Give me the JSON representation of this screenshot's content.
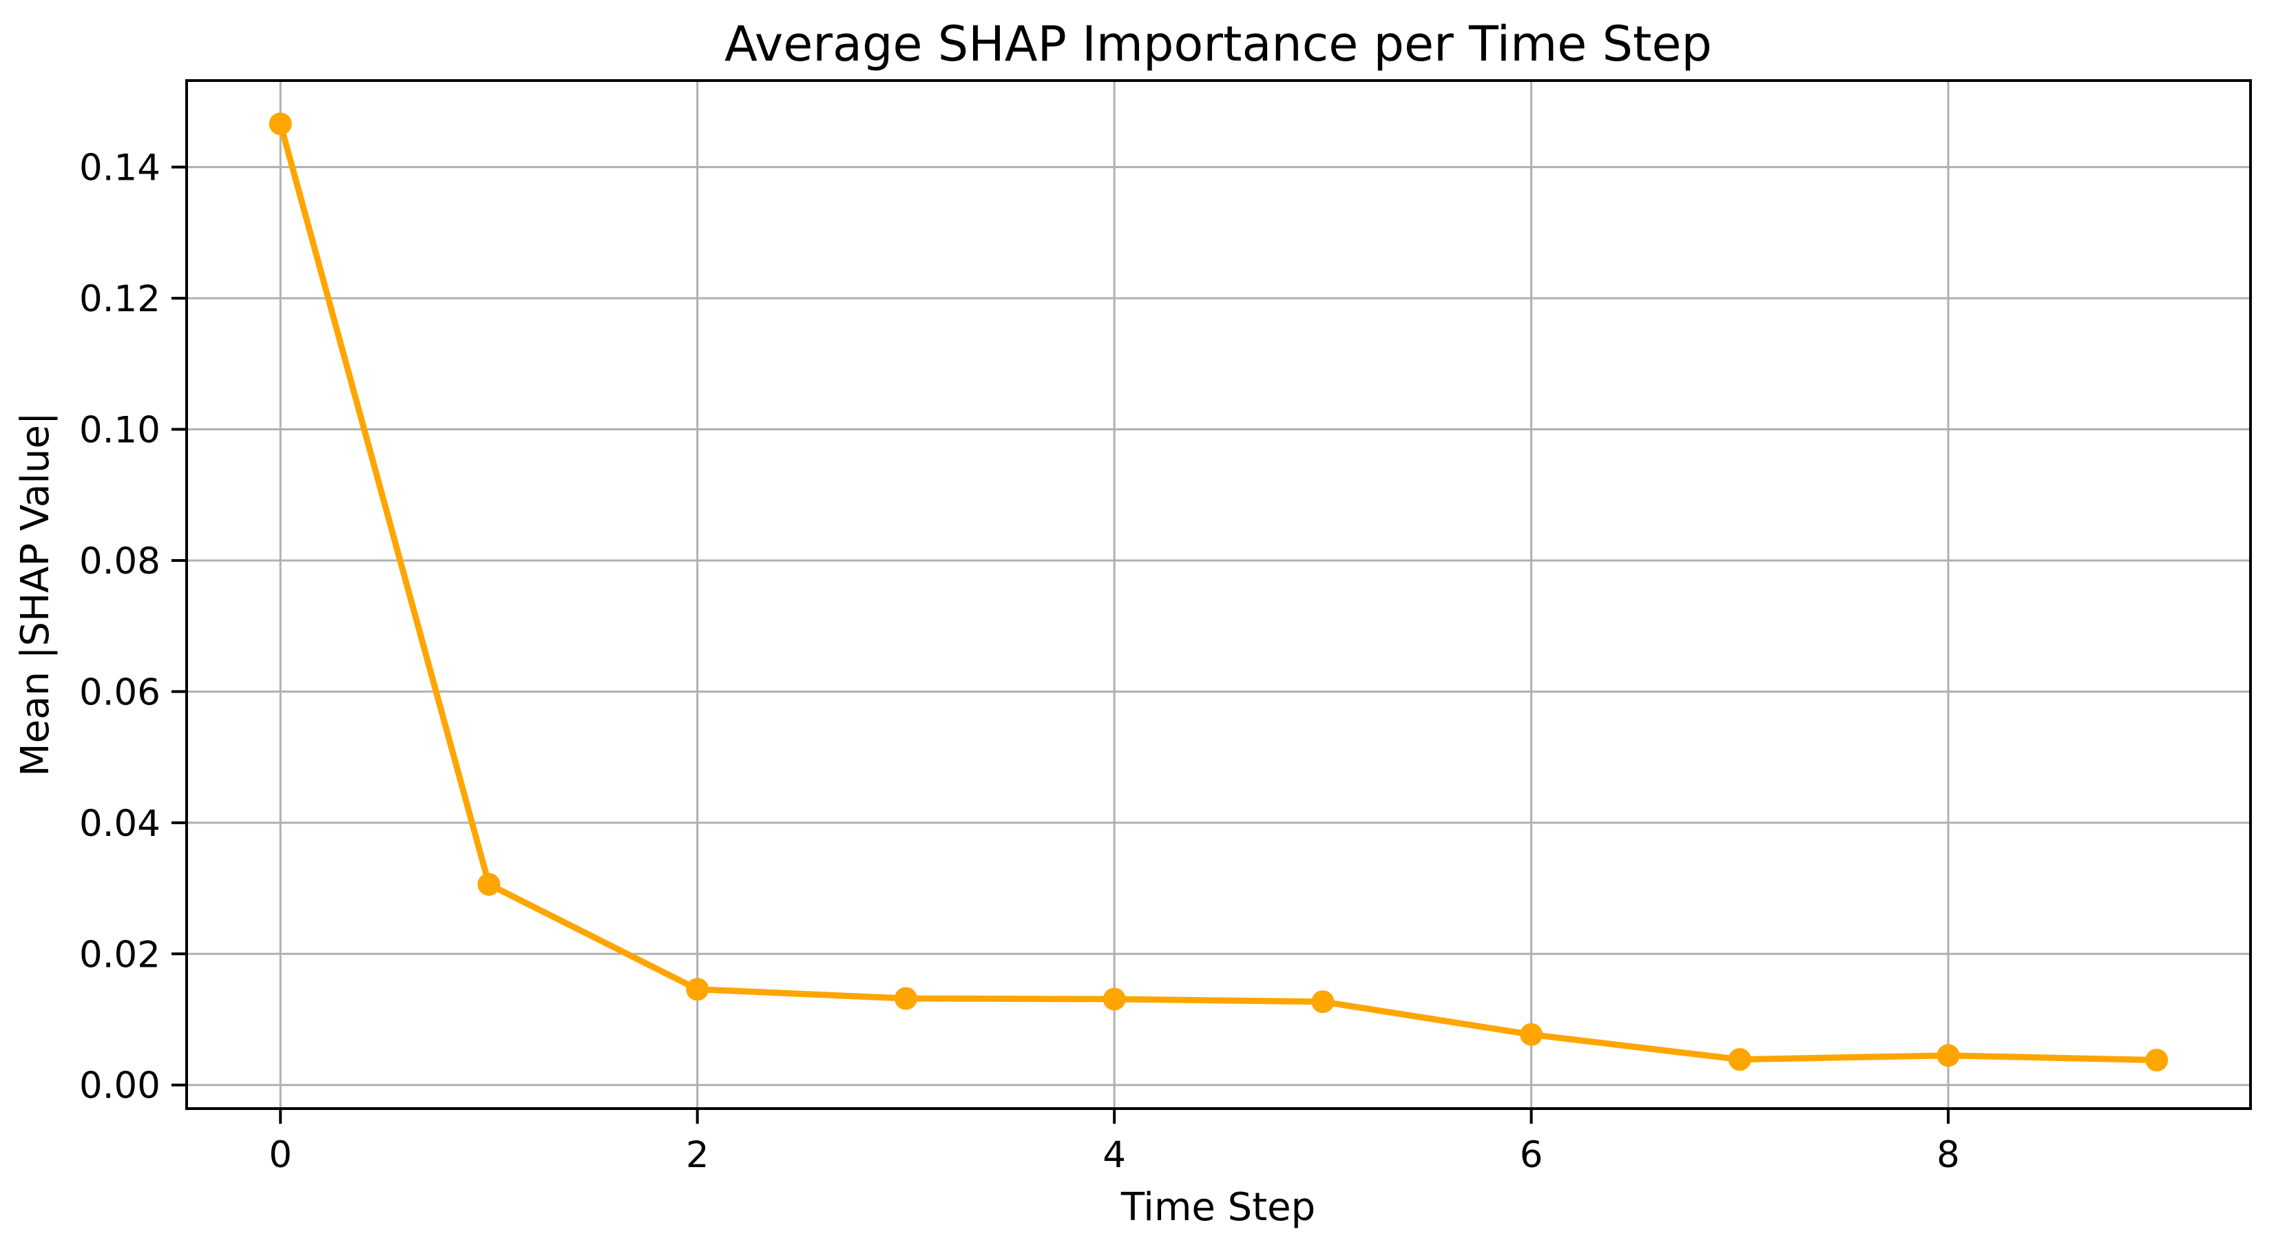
{
  "chart_data": {
    "type": "line",
    "title": "Average SHAP Importance per Time Step",
    "xlabel": "Time Step",
    "ylabel": "Mean |SHAP Value|",
    "x": [
      0,
      1,
      2,
      3,
      4,
      5,
      6,
      7,
      8,
      9
    ],
    "values": [
      0.1466,
      0.0306,
      0.0146,
      0.0132,
      0.0131,
      0.0127,
      0.0077,
      0.0039,
      0.0045,
      0.0038
    ],
    "xlim": [
      -0.45,
      9.45
    ],
    "ylim": [
      -0.0036,
      0.1532
    ],
    "xticks": {
      "values": [
        0,
        2,
        4,
        6,
        8
      ],
      "labels": [
        "0",
        "2",
        "4",
        "6",
        "8"
      ]
    },
    "yticks": {
      "values": [
        0,
        0.02,
        0.04,
        0.06,
        0.08,
        0.1,
        0.12,
        0.14
      ],
      "labels": [
        "0.00",
        "0.02",
        "0.04",
        "0.06",
        "0.08",
        "0.10",
        "0.12",
        "0.14"
      ]
    },
    "grid": true,
    "legend": "none",
    "line_color": "#FFA500",
    "marker": "circle",
    "grid_color": "#b0b0b0",
    "axis_color": "#000000",
    "text_color": "#000000",
    "background_color": "#ffffff"
  }
}
